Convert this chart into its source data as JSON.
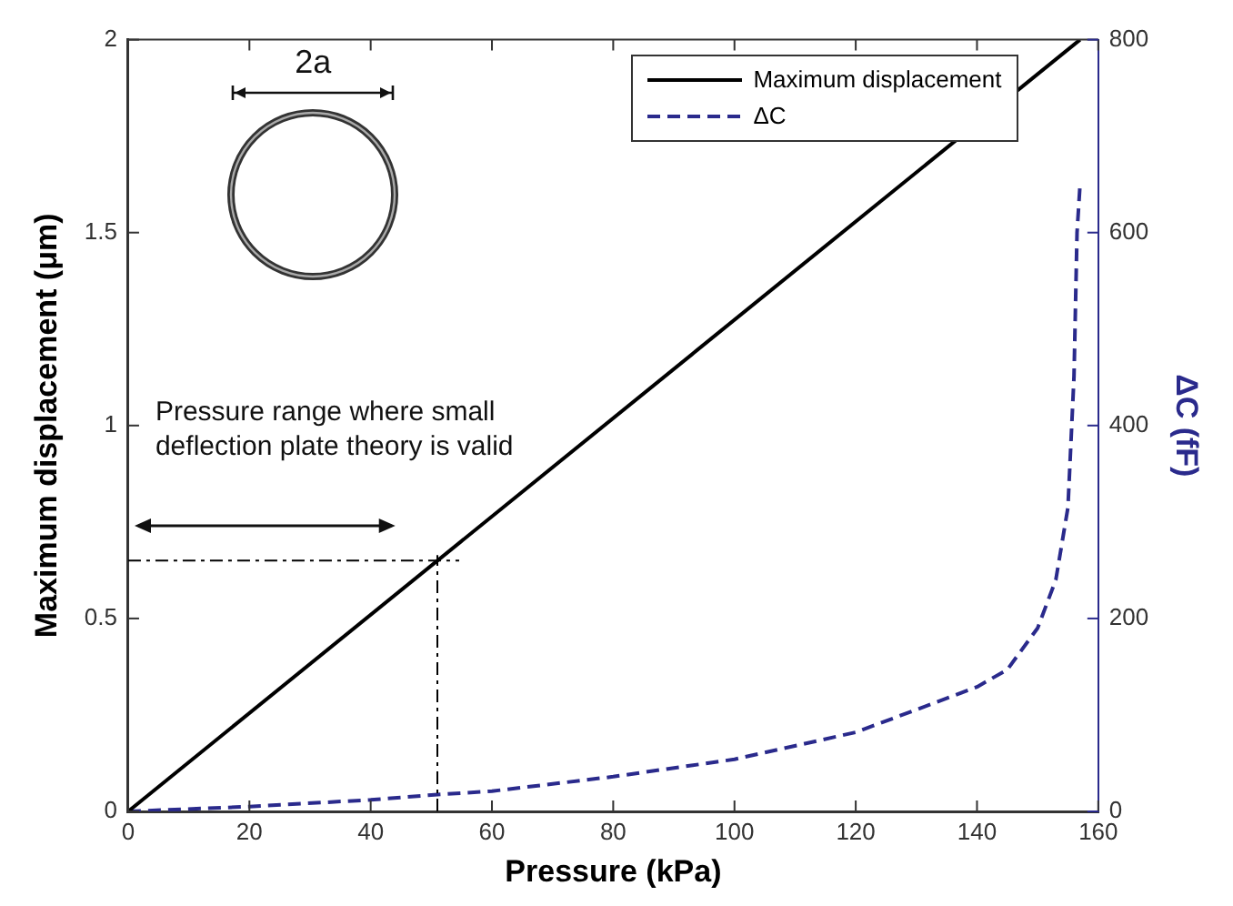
{
  "chart_data": {
    "type": "line",
    "xlabel": "Pressure (kPa)",
    "ylabel": "Maximum displacement (μm)",
    "y2label": "ΔC (fF)",
    "xlim": [
      0,
      160
    ],
    "xticks": [
      0,
      20,
      40,
      60,
      80,
      100,
      120,
      140,
      160
    ],
    "ylim": [
      0,
      2
    ],
    "yticks": [
      0,
      0.5,
      1,
      1.5,
      2
    ],
    "y2lim": [
      0,
      800
    ],
    "y2ticks": [
      0,
      200,
      400,
      600,
      800
    ],
    "grid": false,
    "legend": "top right",
    "marker": "none",
    "series": [
      {
        "name": "Maximum displacement",
        "color": "#000000",
        "line_style": "solid",
        "x": [
          0,
          157
        ],
        "values": [
          0,
          2
        ]
      },
      {
        "name": "ΔC",
        "color": "#2a2a8c",
        "line_style": "dashed",
        "axis": "y2",
        "x": [
          0,
          20,
          40,
          50,
          60,
          80,
          100,
          120,
          140,
          145,
          150,
          153,
          155,
          156,
          156.5,
          157
        ],
        "values": [
          0,
          5,
          12,
          17,
          21,
          36,
          54,
          82,
          129,
          147,
          190,
          240,
          315,
          451,
          600,
          650
        ]
      }
    ],
    "ref_lines": [
      {
        "axis": "y",
        "value": 0.65,
        "color": "#000000",
        "line_style": "dashed"
      },
      {
        "axis": "x",
        "value": 51,
        "color": "#000000",
        "line_style": "dashed"
      }
    ],
    "annotations": [
      "Pressure range where small deflection plate theory is valid",
      "2a"
    ]
  }
}
